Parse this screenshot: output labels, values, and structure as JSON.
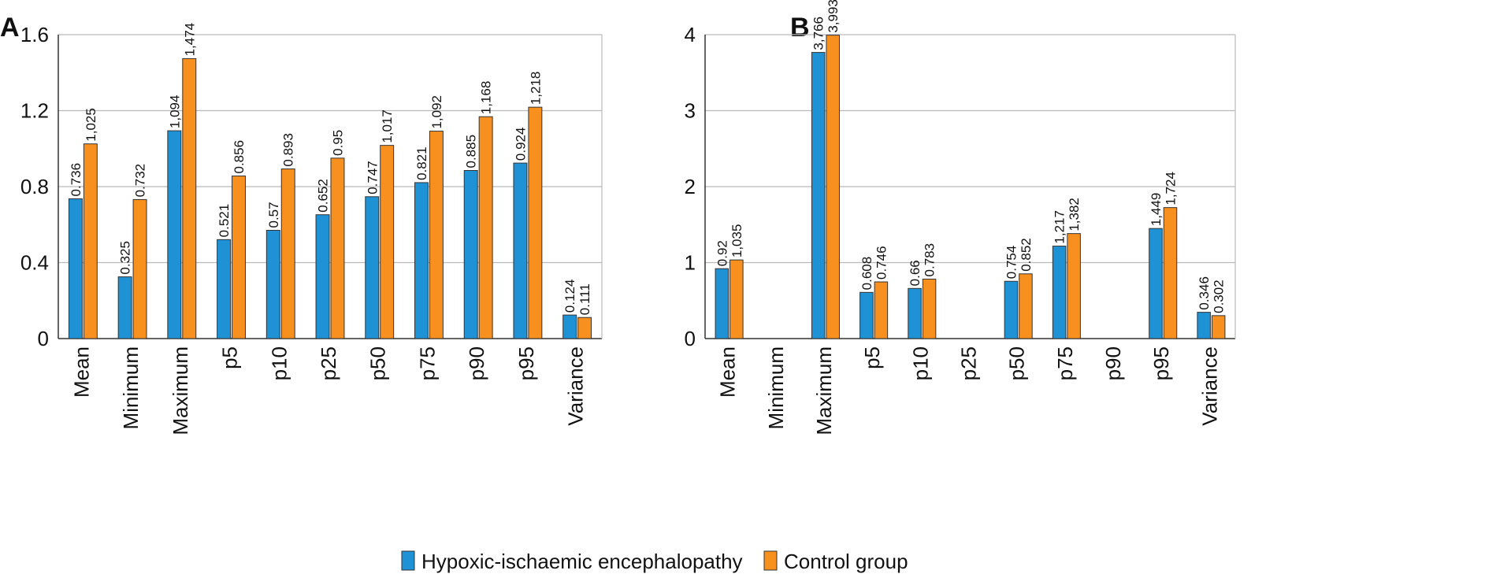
{
  "colors": {
    "series1": "#1f92d6",
    "series2": "#f7901e",
    "grid": "#b9b9b9",
    "axis": "#333333"
  },
  "legend": {
    "items": [
      {
        "label": "Hypoxic-ischaemic encephalopathy",
        "color": "#1f92d6"
      },
      {
        "label": "Control group",
        "color": "#f7901e"
      }
    ],
    "placement": "bottom-center"
  },
  "chart_data": [
    {
      "panel": "A",
      "type": "bar",
      "categories": [
        "Mean",
        "Minimum",
        "Maximum",
        "p5",
        "p10",
        "p25",
        "p50",
        "p75",
        "p90",
        "p95",
        "Variance"
      ],
      "series": [
        {
          "name": "Hypoxic-ischaemic encephalopathy",
          "values": [
            0.736,
            0.325,
            1.094,
            0.521,
            0.57,
            0.652,
            0.747,
            0.821,
            0.885,
            0.924,
            0.124
          ],
          "labels": [
            "0.736",
            "0.325",
            "1,094",
            "0.521",
            "0.57",
            "0.652",
            "0.747",
            "0.821",
            "0.885",
            "0.924",
            "0.124"
          ]
        },
        {
          "name": "Control group",
          "values": [
            1.025,
            0.732,
            1.474,
            0.856,
            0.893,
            0.95,
            1.017,
            1.092,
            1.168,
            1.218,
            0.111
          ],
          "labels": [
            "1,025",
            "0.732",
            "1,474",
            "0.856",
            "0.893",
            "0.95",
            "1,017",
            "1,092",
            "1,168",
            "1,218",
            "0.111"
          ]
        }
      ],
      "ylim": [
        0,
        1.6
      ],
      "yticks": [
        0,
        0.4,
        0.8,
        1.2,
        1.6
      ],
      "ytick_labels": [
        "0",
        "0.4",
        "0.8",
        "1.2",
        "1.6"
      ],
      "grid": true
    },
    {
      "panel": "B",
      "type": "bar",
      "categories": [
        "Mean",
        "Minimum",
        "Maximum",
        "p5",
        "p10",
        "p25",
        "p50",
        "p75",
        "p90",
        "p95",
        "Variance"
      ],
      "series": [
        {
          "name": "Hypoxic-ischaemic encephalopathy",
          "values": [
            0.92,
            null,
            3.766,
            0.608,
            0.66,
            null,
            0.754,
            1.217,
            null,
            1.449,
            0.346
          ],
          "labels": [
            "0.92",
            null,
            "3,766",
            "0.608",
            "0.66",
            null,
            "0.754",
            "1,217",
            null,
            "1,449",
            "0.346"
          ]
        },
        {
          "name": "Control group",
          "values": [
            1.035,
            null,
            3.993,
            0.746,
            0.783,
            null,
            0.852,
            1.382,
            null,
            1.724,
            0.302
          ],
          "labels": [
            "1,035",
            null,
            "3,993",
            "0.746",
            "0.783",
            null,
            "0.852",
            "1,382",
            null,
            "1,724",
            "0.302"
          ]
        }
      ],
      "ylim": [
        0,
        4
      ],
      "yticks": [
        0,
        1,
        2,
        3,
        4
      ],
      "ytick_labels": [
        "0",
        "1",
        "2",
        "3",
        "4"
      ],
      "grid": true
    }
  ]
}
